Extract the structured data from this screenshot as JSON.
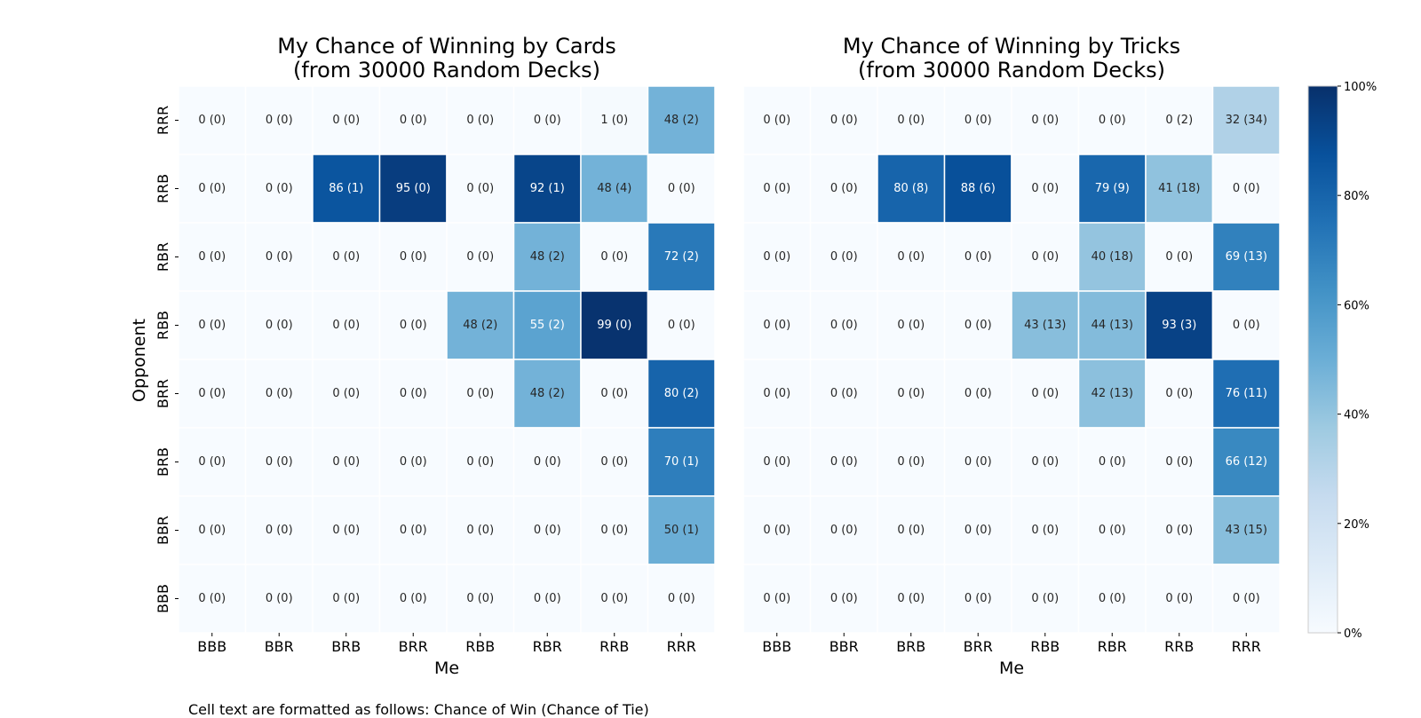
{
  "chart_data": [
    {
      "type": "heatmap",
      "title_lines": [
        "My Chance of Winning by Cards",
        "(from 30000 Random Decks)"
      ],
      "xlabel": "Me",
      "ylabel": "Opponent",
      "x_categories": [
        "BBB",
        "BBR",
        "BRB",
        "BRR",
        "RBB",
        "RBR",
        "RRB",
        "RRR"
      ],
      "y_categories": [
        "RRR",
        "RRB",
        "RBR",
        "RBB",
        "BRR",
        "BRB",
        "BBR",
        "BBB"
      ],
      "win": [
        [
          0,
          0,
          0,
          0,
          0,
          0,
          1,
          48
        ],
        [
          0,
          0,
          86,
          95,
          0,
          92,
          48,
          0
        ],
        [
          0,
          0,
          0,
          0,
          0,
          48,
          0,
          72
        ],
        [
          0,
          0,
          0,
          0,
          48,
          55,
          99,
          0
        ],
        [
          0,
          0,
          0,
          0,
          0,
          48,
          0,
          80
        ],
        [
          0,
          0,
          0,
          0,
          0,
          0,
          0,
          70
        ],
        [
          0,
          0,
          0,
          0,
          0,
          0,
          0,
          50
        ],
        [
          0,
          0,
          0,
          0,
          0,
          0,
          0,
          0
        ]
      ],
      "tie": [
        [
          0,
          0,
          0,
          0,
          0,
          0,
          0,
          2
        ],
        [
          0,
          0,
          1,
          0,
          0,
          1,
          4,
          0
        ],
        [
          0,
          0,
          0,
          0,
          0,
          2,
          0,
          2
        ],
        [
          0,
          0,
          0,
          0,
          2,
          2,
          0,
          0
        ],
        [
          0,
          0,
          0,
          0,
          0,
          2,
          0,
          2
        ],
        [
          0,
          0,
          0,
          0,
          0,
          0,
          0,
          1
        ],
        [
          0,
          0,
          0,
          0,
          0,
          0,
          0,
          1
        ],
        [
          0,
          0,
          0,
          0,
          0,
          0,
          0,
          0
        ]
      ]
    },
    {
      "type": "heatmap",
      "title_lines": [
        "My Chance of Winning by Tricks",
        "(from 30000 Random Decks)"
      ],
      "xlabel": "Me",
      "ylabel": "",
      "x_categories": [
        "BBB",
        "BBR",
        "BRB",
        "BRR",
        "RBB",
        "RBR",
        "RRB",
        "RRR"
      ],
      "y_categories": [
        "RRR",
        "RRB",
        "RBR",
        "RBB",
        "BRR",
        "BRB",
        "BBR",
        "BBB"
      ],
      "win": [
        [
          0,
          0,
          0,
          0,
          0,
          0,
          0,
          32
        ],
        [
          0,
          0,
          80,
          88,
          0,
          79,
          41,
          0
        ],
        [
          0,
          0,
          0,
          0,
          0,
          40,
          0,
          69
        ],
        [
          0,
          0,
          0,
          0,
          43,
          44,
          93,
          0
        ],
        [
          0,
          0,
          0,
          0,
          0,
          42,
          0,
          76
        ],
        [
          0,
          0,
          0,
          0,
          0,
          0,
          0,
          66
        ],
        [
          0,
          0,
          0,
          0,
          0,
          0,
          0,
          43
        ],
        [
          0,
          0,
          0,
          0,
          0,
          0,
          0,
          0
        ]
      ],
      "tie": [
        [
          0,
          0,
          0,
          0,
          0,
          0,
          2,
          34
        ],
        [
          0,
          0,
          8,
          6,
          0,
          9,
          18,
          0
        ],
        [
          0,
          0,
          0,
          0,
          0,
          18,
          0,
          13
        ],
        [
          0,
          0,
          0,
          0,
          13,
          13,
          3,
          0
        ],
        [
          0,
          0,
          0,
          0,
          0,
          13,
          0,
          11
        ],
        [
          0,
          0,
          0,
          0,
          0,
          0,
          0,
          12
        ],
        [
          0,
          0,
          0,
          0,
          0,
          0,
          0,
          15
        ],
        [
          0,
          0,
          0,
          0,
          0,
          0,
          0,
          0
        ]
      ]
    }
  ],
  "colorbar": {
    "ticks": [
      "0%",
      "20%",
      "40%",
      "60%",
      "80%",
      "100%"
    ],
    "min": 0,
    "max": 100
  },
  "footnote": "Cell text are formatted as follows: Chance of Win (Chance of Tie)"
}
